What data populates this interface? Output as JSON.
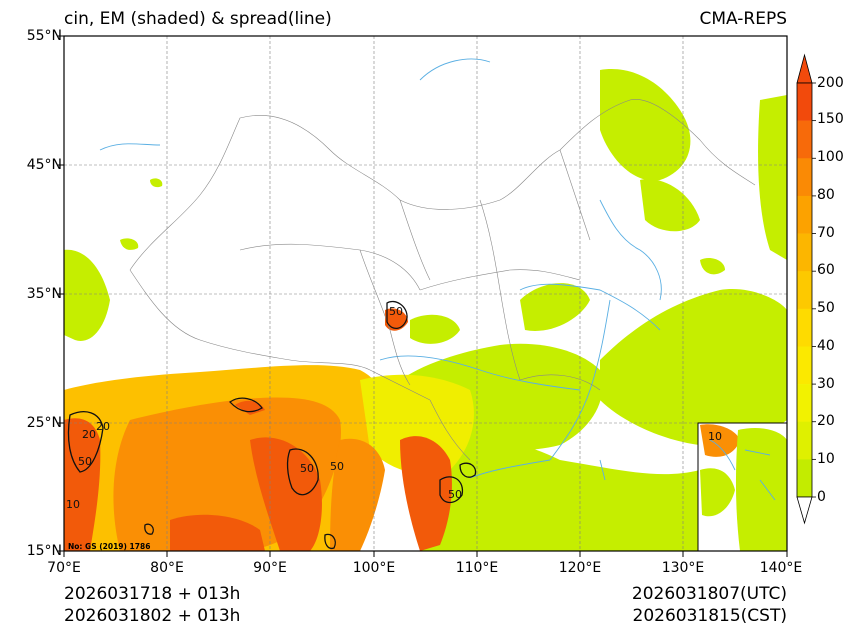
{
  "header": {
    "title_left": "cin, EM (shaded) & spread(line)",
    "title_right": "CMA-REPS"
  },
  "axes": {
    "lat_labels": [
      "55°N",
      "45°N",
      "35°N",
      "25°N",
      "15°N"
    ],
    "lon_labels": [
      "70°E",
      "80°E",
      "90°E",
      "100°E",
      "110°E",
      "120°E",
      "130°E",
      "140°E"
    ]
  },
  "colorbar": {
    "labels": [
      "200",
      "150",
      "100",
      "80",
      "70",
      "60",
      "50",
      "40",
      "30",
      "20",
      "10",
      "0"
    ],
    "colors": [
      "#f24a0c",
      "#f76a0a",
      "#fa8a05",
      "#fca200",
      "#fcb600",
      "#fdc900",
      "#fedb00",
      "#fbe900",
      "#f2f200",
      "#dff000",
      "#c3ec00"
    ]
  },
  "map": {
    "contour_labels": [
      "50",
      "50",
      "50",
      "50",
      "50",
      "20",
      "20",
      "10",
      "10"
    ],
    "colors": {
      "high": "#f25a0a",
      "orange": "#fa8f05",
      "mid": "#fdc000",
      "yellow": "#f0ee00",
      "green": "#c5ee00",
      "river": "#5aafe3",
      "border": "#888888",
      "grid": "#808080"
    }
  },
  "credit": "No: GS (2019) 1786",
  "footer": {
    "init_utc": "2026031718  +  013h",
    "init_cst": "2026031802  +  013h",
    "valid_utc": "2026031807(UTC)",
    "valid_cst": "2026031815(CST)"
  }
}
